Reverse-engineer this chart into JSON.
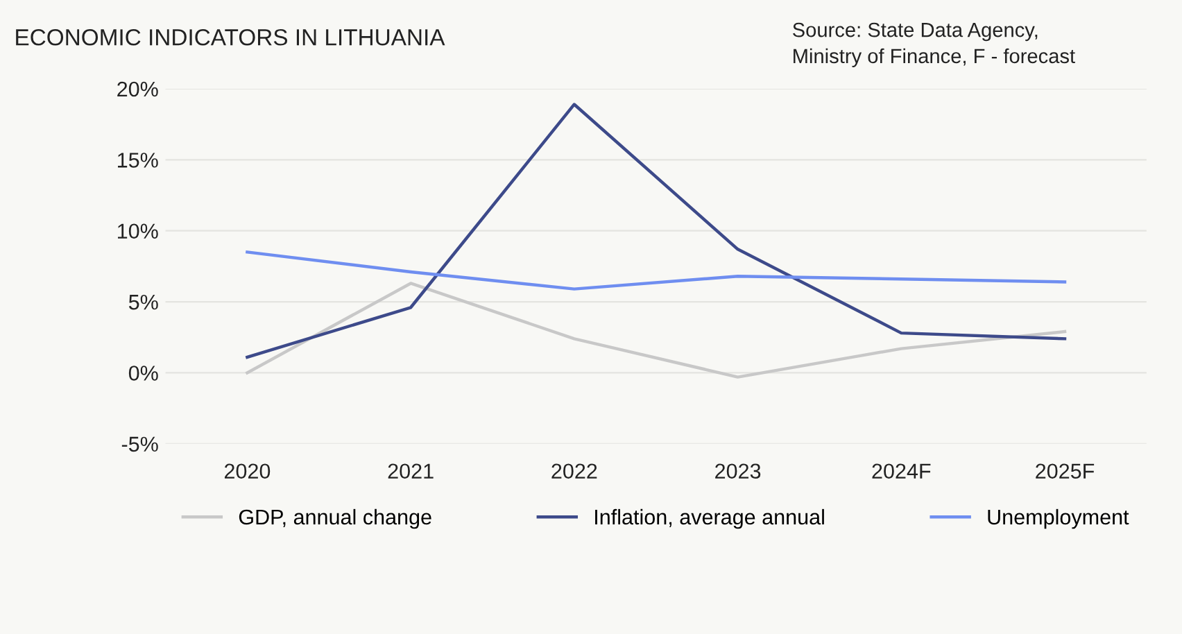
{
  "chart_data": {
    "type": "line",
    "title": "ECONOMIC INDICATORS IN LITHUANIA",
    "annotations": [
      "Source: State Data Agency,\nMinistry of Finance, F - forecast"
    ],
    "categories": [
      "2020",
      "2021",
      "2022",
      "2023",
      "2024F",
      "2025F"
    ],
    "series": [
      {
        "name": "GDP, annual change",
        "color": "#c8c8c8",
        "values": [
          0.0,
          6.3,
          2.4,
          -0.3,
          1.7,
          2.9
        ]
      },
      {
        "name": "Inflation, average annual",
        "color": "#3d4a8a",
        "values": [
          1.1,
          4.6,
          18.9,
          8.7,
          2.8,
          2.4
        ]
      },
      {
        "name": "Unemployment",
        "color": "#6f8ef0",
        "values": [
          8.5,
          7.1,
          5.9,
          6.8,
          6.6,
          6.4
        ]
      }
    ],
    "ylim": [
      -5,
      20
    ],
    "yticks": [
      {
        "value": -5,
        "label": "-5%"
      },
      {
        "value": 0,
        "label": "0%"
      },
      {
        "value": 5,
        "label": "5%"
      },
      {
        "value": 10,
        "label": "10%"
      },
      {
        "value": 15,
        "label": "15%"
      },
      {
        "value": 20,
        "label": "20%"
      }
    ],
    "grid": "y",
    "legend": "bottom",
    "marker": "none",
    "line_style": "solid"
  }
}
